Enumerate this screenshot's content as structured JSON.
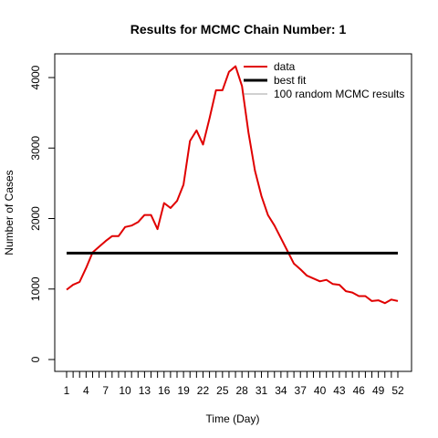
{
  "chart_data": {
    "type": "line",
    "title": "Results for MCMC Chain Number: 1",
    "xlabel": "Time (Day)",
    "ylabel": "Number of Cases",
    "xlim": [
      1,
      52
    ],
    "ylim": [
      0,
      4200
    ],
    "x_tick_labels": [
      "1",
      "4",
      "7",
      "10",
      "13",
      "16",
      "19",
      "22",
      "25",
      "28",
      "31",
      "34",
      "37",
      "40",
      "43",
      "46",
      "49",
      "52"
    ],
    "x_tick_values": [
      1,
      4,
      7,
      10,
      13,
      16,
      19,
      22,
      25,
      28,
      31,
      34,
      37,
      40,
      43,
      46,
      49,
      52
    ],
    "y_tick_values": [
      0,
      1000,
      2000,
      3000,
      4000
    ],
    "y_tick_labels": [
      "0",
      "1000",
      "2000",
      "3000",
      "4000"
    ],
    "legend_position": "top-right",
    "series": [
      {
        "name": "data",
        "color": "#e00000",
        "x": [
          1,
          2,
          3,
          4,
          5,
          6,
          7,
          8,
          9,
          10,
          11,
          12,
          13,
          14,
          15,
          16,
          17,
          18,
          19,
          20,
          21,
          22,
          23,
          24,
          25,
          26,
          27,
          28,
          29,
          30,
          31,
          32,
          33,
          34,
          35,
          36,
          37,
          38,
          39,
          40,
          41,
          42,
          43,
          44,
          45,
          46,
          47,
          48,
          49,
          50,
          51,
          52
        ],
        "values": [
          990,
          1060,
          1100,
          1300,
          1520,
          1600,
          1680,
          1750,
          1750,
          1880,
          1900,
          1950,
          2050,
          2050,
          1850,
          2220,
          2150,
          2250,
          2480,
          3100,
          3250,
          3050,
          3420,
          3820,
          3820,
          4080,
          4160,
          3880,
          3220,
          2680,
          2320,
          2050,
          1900,
          1720,
          1540,
          1360,
          1280,
          1190,
          1150,
          1110,
          1130,
          1070,
          1060,
          970,
          950,
          900,
          900,
          830,
          840,
          800,
          850,
          830
        ]
      },
      {
        "name": "best fit",
        "color": "#000000",
        "x": [
          1,
          52
        ],
        "values": [
          1510,
          1510
        ]
      },
      {
        "name": "100 random MCMC results",
        "color": "#a0a0a0",
        "x": [],
        "values": []
      }
    ]
  }
}
